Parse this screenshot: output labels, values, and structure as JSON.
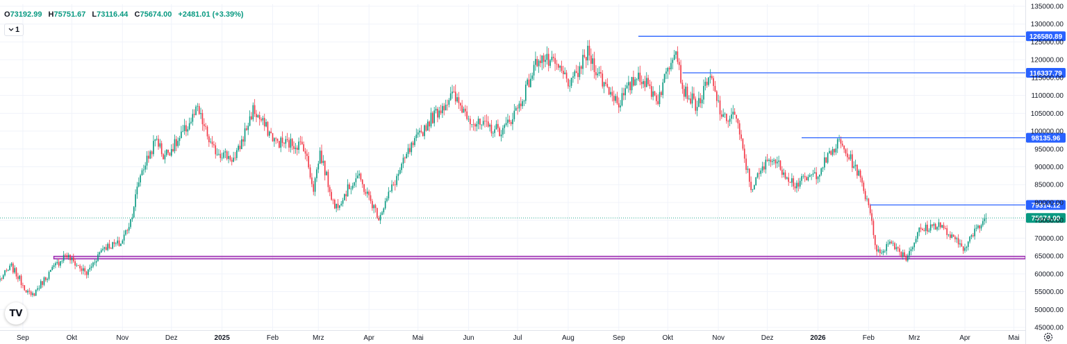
{
  "header": {
    "open_key": "O",
    "open": "73192.99",
    "high_key": "H",
    "high": "75751.67",
    "low_key": "L",
    "low": "73116.44",
    "close_key": "C",
    "close": "75674.00",
    "change": "+2481.01 (+3.39%)",
    "interval": "1"
  },
  "colors": {
    "up": "#089981",
    "down": "#f23645",
    "level": "#2962ff",
    "zone": "#9c27b0",
    "grid": "#f0f3fa",
    "text": "#131722"
  },
  "icons": {
    "logo": "tradingview-logo-icon",
    "settings": "gear-icon",
    "interval": "chevron-down-icon"
  },
  "chart_data": {
    "type": "candlestick",
    "x_range": [
      "2024-08-18",
      "2026-05-08"
    ],
    "ylim": [
      45000,
      135000
    ],
    "y_ticks": [
      "135000.00",
      "130000.00",
      "125000.00",
      "120000.00",
      "115000.00",
      "110000.00",
      "105000.00",
      "100000.00",
      "95000.00",
      "90000.00",
      "85000.00",
      "80000.00",
      "75000.00",
      "70000.00",
      "65000.00",
      "60000.00",
      "55000.00",
      "50000.00",
      "45000.00"
    ],
    "x_ticks": [
      {
        "date": "2024-09-01",
        "label": "Sep",
        "bold": false
      },
      {
        "date": "2024-10-01",
        "label": "Okt",
        "bold": false
      },
      {
        "date": "2024-11-01",
        "label": "Nov",
        "bold": false
      },
      {
        "date": "2024-12-01",
        "label": "Dez",
        "bold": false
      },
      {
        "date": "2025-01-01",
        "label": "2025",
        "bold": true
      },
      {
        "date": "2025-02-01",
        "label": "Feb",
        "bold": false
      },
      {
        "date": "2025-03-01",
        "label": "Mrz",
        "bold": false
      },
      {
        "date": "2025-04-01",
        "label": "Apr",
        "bold": false
      },
      {
        "date": "2025-05-01",
        "label": "Mai",
        "bold": false
      },
      {
        "date": "2025-06-01",
        "label": "Jun",
        "bold": false
      },
      {
        "date": "2025-07-01",
        "label": "Jul",
        "bold": false
      },
      {
        "date": "2025-08-01",
        "label": "Aug",
        "bold": false
      },
      {
        "date": "2025-09-01",
        "label": "Sep",
        "bold": false
      },
      {
        "date": "2025-10-01",
        "label": "Okt",
        "bold": false
      },
      {
        "date": "2025-11-01",
        "label": "Nov",
        "bold": false
      },
      {
        "date": "2025-12-01",
        "label": "Dez",
        "bold": false
      },
      {
        "date": "2026-01-01",
        "label": "2026",
        "bold": true
      },
      {
        "date": "2026-02-01",
        "label": "Feb",
        "bold": false
      },
      {
        "date": "2026-03-01",
        "label": "Mrz",
        "bold": false
      },
      {
        "date": "2026-04-01",
        "label": "Apr",
        "bold": false
      },
      {
        "date": "2026-05-01",
        "label": "Mai",
        "bold": false
      }
    ],
    "close_path": [
      [
        "2024-08-18",
        58500
      ],
      [
        "2024-08-25",
        62000
      ],
      [
        "2024-09-06",
        53500
      ],
      [
        "2024-09-15",
        59000
      ],
      [
        "2024-09-27",
        65500
      ],
      [
        "2024-10-10",
        60000
      ],
      [
        "2024-10-20",
        67500
      ],
      [
        "2024-10-31",
        68500
      ],
      [
        "2024-11-06",
        75000
      ],
      [
        "2024-11-12",
        88000
      ],
      [
        "2024-11-22",
        98000
      ],
      [
        "2024-11-26",
        93000
      ],
      [
        "2024-12-05",
        97000
      ],
      [
        "2024-12-17",
        106000
      ],
      [
        "2024-12-26",
        95000
      ],
      [
        "2025-01-09",
        92000
      ],
      [
        "2025-01-20",
        106000
      ],
      [
        "2025-02-03",
        97000
      ],
      [
        "2025-02-20",
        96000
      ],
      [
        "2025-02-26",
        84000
      ],
      [
        "2025-03-02",
        94000
      ],
      [
        "2025-03-11",
        78500
      ],
      [
        "2025-03-25",
        87500
      ],
      [
        "2025-04-07",
        76000
      ],
      [
        "2025-04-15",
        84000
      ],
      [
        "2025-04-25",
        94000
      ],
      [
        "2025-05-08",
        103000
      ],
      [
        "2025-05-22",
        110000
      ],
      [
        "2025-06-05",
        102000
      ],
      [
        "2025-06-22",
        100000
      ],
      [
        "2025-07-03",
        108000
      ],
      [
        "2025-07-14",
        121000
      ],
      [
        "2025-07-25",
        118000
      ],
      [
        "2025-08-03",
        113000
      ],
      [
        "2025-08-13",
        122000
      ],
      [
        "2025-08-22",
        114000
      ],
      [
        "2025-09-01",
        108000
      ],
      [
        "2025-09-13",
        116000
      ],
      [
        "2025-09-25",
        109000
      ],
      [
        "2025-10-06",
        124500
      ],
      [
        "2025-10-10",
        112000
      ],
      [
        "2025-10-19",
        107000
      ],
      [
        "2025-10-27",
        115000
      ],
      [
        "2025-11-04",
        103000
      ],
      [
        "2025-11-11",
        105000
      ],
      [
        "2025-11-21",
        84000
      ],
      [
        "2025-12-03",
        93000
      ],
      [
        "2025-12-18",
        85000
      ],
      [
        "2025-12-31",
        88000
      ],
      [
        "2026-01-14",
        97000
      ],
      [
        "2026-01-25",
        89000
      ],
      [
        "2026-02-02",
        78000
      ],
      [
        "2026-02-06",
        65500
      ],
      [
        "2026-02-15",
        69000
      ],
      [
        "2026-02-24",
        64500
      ],
      [
        "2026-03-04",
        72000
      ],
      [
        "2026-03-16",
        74000
      ],
      [
        "2026-03-24",
        70000
      ],
      [
        "2026-03-31",
        67500
      ],
      [
        "2026-04-14",
        75674
      ]
    ],
    "levels": [
      {
        "price": 126580.89,
        "label": "126580.89",
        "from": "2025-09-13"
      },
      {
        "price": 116337.79,
        "label": "116337.79",
        "from": "2025-10-10"
      },
      {
        "price": 98135.96,
        "label": "98135.96",
        "from": "2025-12-22"
      },
      {
        "price": 79314.12,
        "label": "79314.12",
        "from": "2026-02-02"
      }
    ],
    "last_price": {
      "price": 75674.0,
      "label": "75674.00"
    },
    "support_zone": {
      "from_price": 64200,
      "to_price": 64900,
      "from_date": "2024-09-20"
    }
  }
}
